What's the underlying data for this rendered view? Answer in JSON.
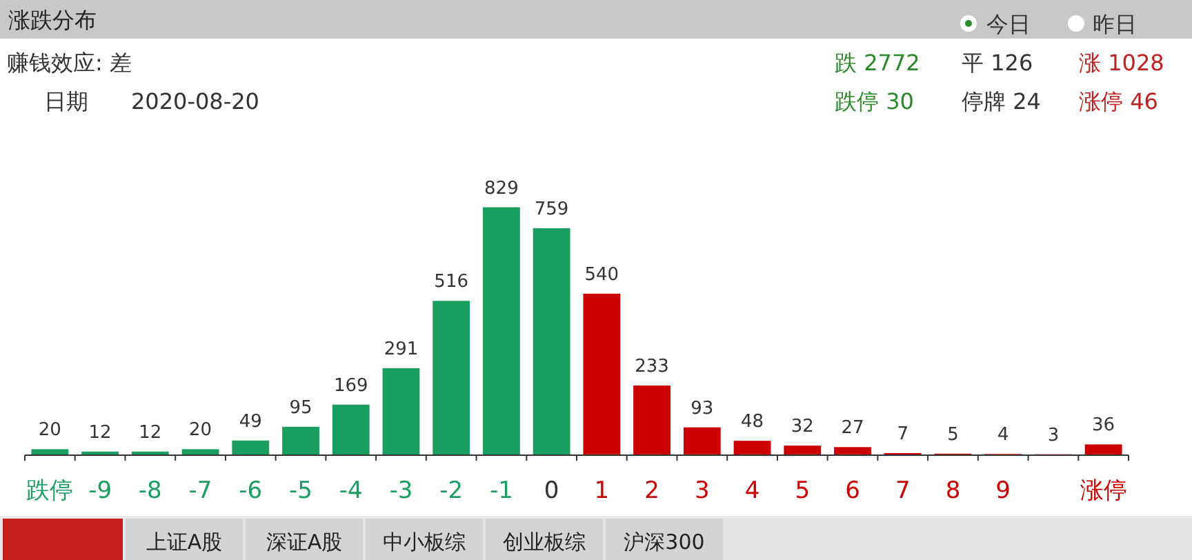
{
  "chart_data": {
    "type": "bar",
    "title": "涨跌分布",
    "categories": [
      "跌停",
      "-9",
      "-8",
      "-7",
      "-6",
      "-5",
      "-4",
      "-3",
      "-2",
      "-1",
      "0",
      "1",
      "2",
      "3",
      "4",
      "5",
      "6",
      "7",
      "8",
      "9",
      null,
      "涨停"
    ],
    "values": [
      20,
      12,
      12,
      20,
      49,
      95,
      169,
      291,
      516,
      829,
      759,
      540,
      233,
      93,
      48,
      32,
      27,
      7,
      5,
      4,
      3,
      36
    ],
    "colors": [
      "#1a9e5f",
      "#1a9e5f",
      "#1a9e5f",
      "#1a9e5f",
      "#1a9e5f",
      "#1a9e5f",
      "#1a9e5f",
      "#1a9e5f",
      "#1a9e5f",
      "#1a9e5f",
      "#1a9e5f",
      "#cc0000",
      "#cc0000",
      "#cc0000",
      "#cc0000",
      "#cc0000",
      "#cc0000",
      "#cc0000",
      "#cc0000",
      "#cc0000",
      "#cc0000",
      "#cc0000"
    ],
    "data_labels": true,
    "tick_labels": "x",
    "annotations": [
      "赚钱效应: 差",
      "日期",
      "2020-08-20",
      "今日",
      "昨日",
      "跌 2772",
      "平 126",
      "涨 1028",
      "跌停 30",
      "停牌 24",
      "涨停 46",
      "上证A股",
      "深证A股",
      "中小板综",
      "创业板综",
      "沪深300"
    ]
  }
}
